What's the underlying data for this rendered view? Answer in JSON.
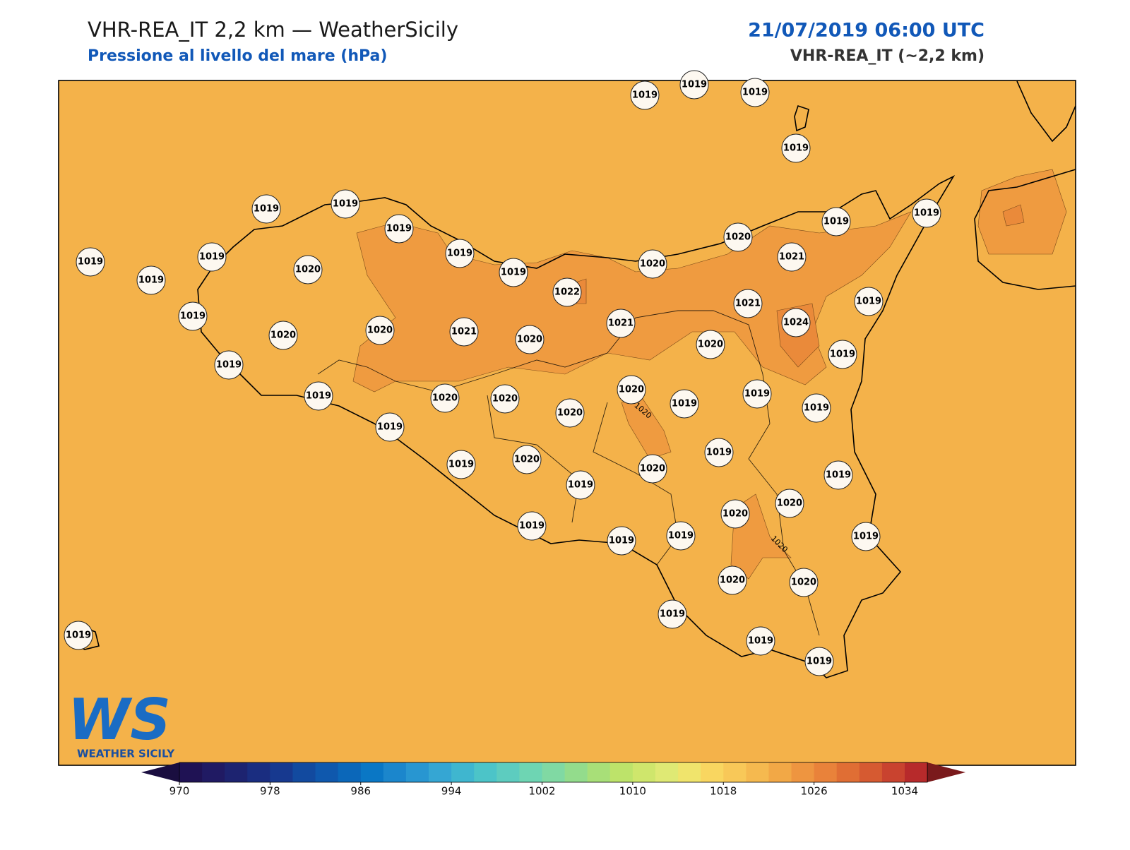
{
  "header": {
    "title": "VHR-REA_IT 2,2 km — WeatherSicily",
    "subtitle": "Pressione al livello del mare (hPa)",
    "datetime": "21/07/2019 06:00 UTC",
    "model": "VHR-REA_IT (~2,2 km)"
  },
  "map": {
    "background_color": "#f4b24a",
    "contour_colors": [
      "#ef9b40",
      "#ea8a3a"
    ],
    "stations": [
      1019,
      1019,
      1019,
      1019,
      1019,
      1019,
      1019,
      1019,
      1019,
      1019,
      1019,
      1019,
      1020,
      1019,
      1020,
      1019,
      1020,
      1021,
      1020,
      1022,
      1021,
      1020,
      1020,
      1019,
      1021,
      1019,
      1021,
      1024,
      1019,
      1020,
      1019,
      1019,
      1020,
      1020,
      1020,
      1020,
      1019,
      1019,
      1019,
      1019,
      1019,
      1020,
      1019,
      1020,
      1019,
      1019,
      1020,
      1020,
      1019,
      1019,
      1019,
      1019,
      1020,
      1020,
      1019,
      1019,
      1019,
      1019
    ],
    "contour_labels": [
      "1020",
      "1020"
    ]
  },
  "colorbar": {
    "lim": [
      970,
      1036
    ],
    "ticks": [
      970,
      978,
      986,
      994,
      1002,
      1010,
      1018,
      1026,
      1034
    ],
    "colors": [
      "#1f1254",
      "#201a63",
      "#1d2370",
      "#1a2d80",
      "#17398f",
      "#124a9f",
      "#0f58ad",
      "#0b67b9",
      "#0a77c5",
      "#1b86cc",
      "#2896d1",
      "#35a6d3",
      "#3fb6cf",
      "#4cc4c8",
      "#5dccbf",
      "#6ed5b3",
      "#80d9a3",
      "#93dc8c",
      "#a8df78",
      "#bde36a",
      "#cfe66c",
      "#dfe974",
      "#f0e46c",
      "#f9d660",
      "#f8c858",
      "#f5b94f",
      "#f2a846",
      "#ee9540",
      "#e9823a",
      "#e06e34",
      "#d65a31",
      "#c9432f",
      "#b72a2b"
    ],
    "under_color": "#1a0e40",
    "over_color": "#7a1a1c"
  },
  "logo": {
    "mark": "WS",
    "text": "WEATHER SICILY"
  }
}
